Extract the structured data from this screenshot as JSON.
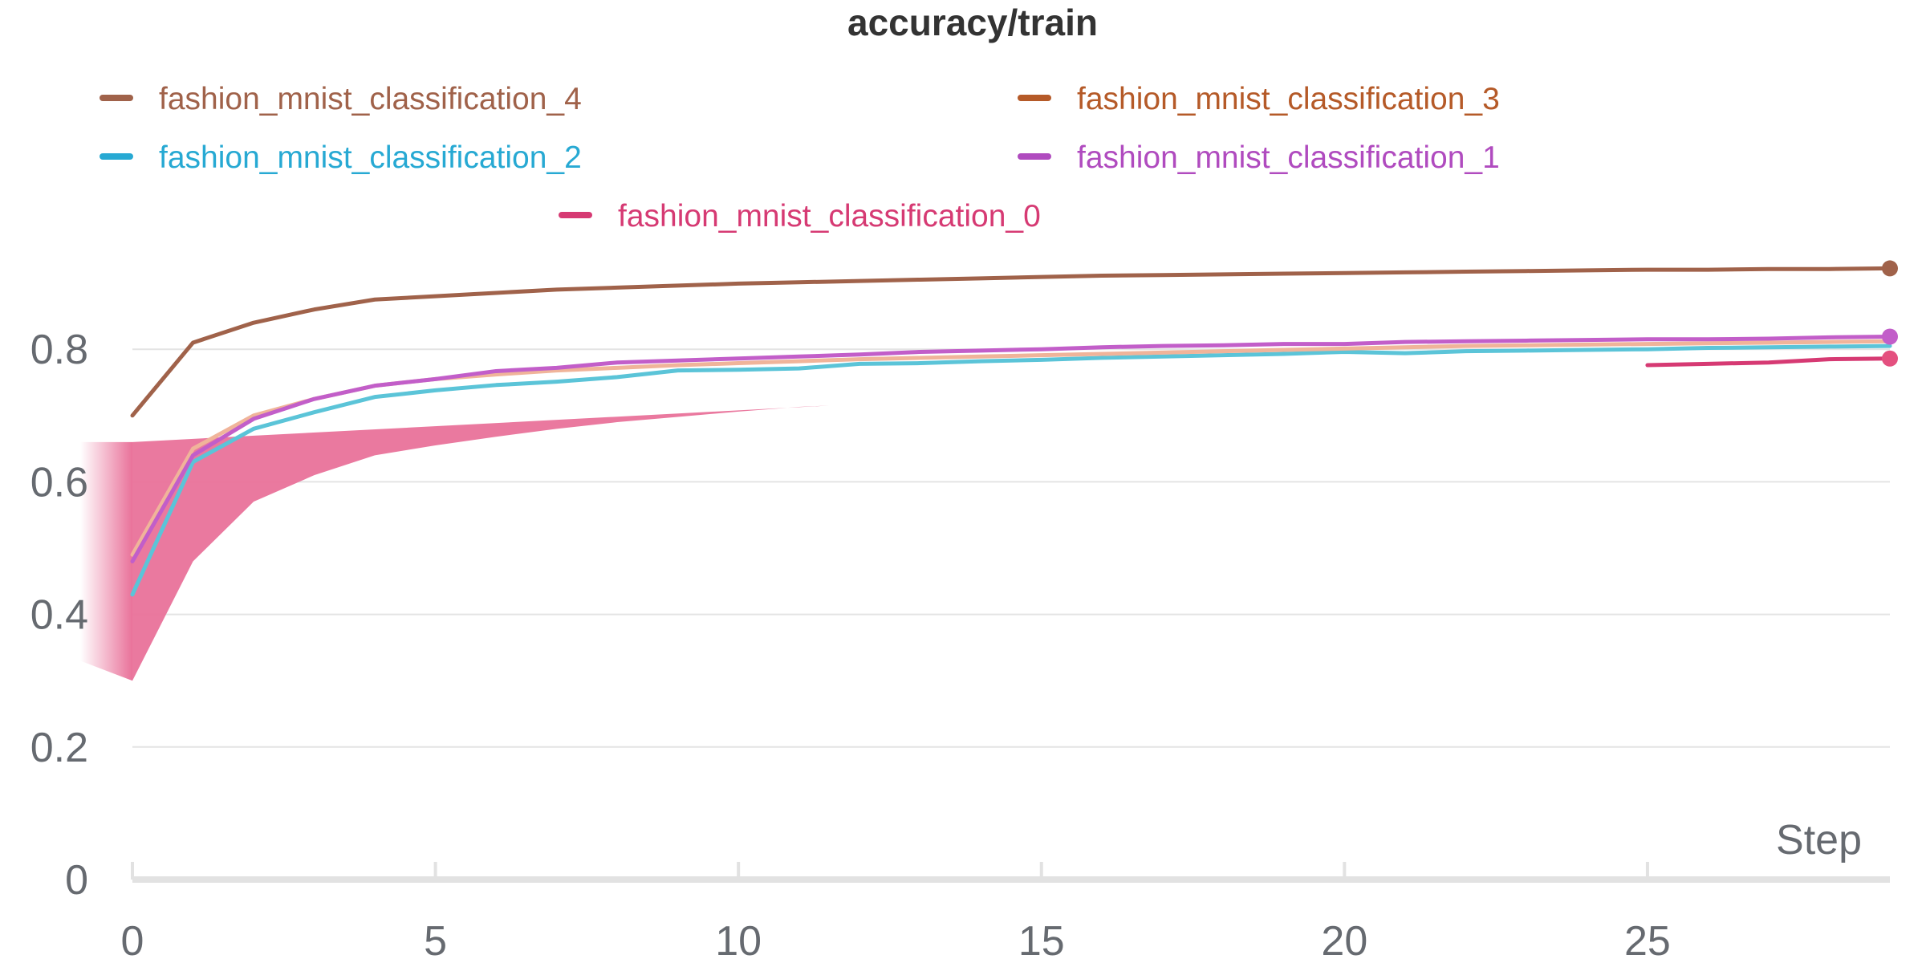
{
  "chart_data": {
    "type": "line",
    "title": "accuracy/train",
    "xlabel": "Step",
    "ylabel": "",
    "xlim": [
      0,
      29
    ],
    "ylim": [
      0,
      1.0
    ],
    "x_ticks": [
      0,
      5,
      10,
      15,
      20,
      25
    ],
    "y_ticks": [
      0,
      0.2,
      0.4,
      0.6,
      0.8
    ],
    "grid": true,
    "legend_position": "top",
    "legend": [
      {
        "name": "fashion_mnist_classification_4",
        "color": "#a0624a"
      },
      {
        "name": "fashion_mnist_classification_3",
        "color": "#b55a28"
      },
      {
        "name": "fashion_mnist_classification_2",
        "color": "#27a9d3"
      },
      {
        "name": "fashion_mnist_classification_1",
        "color": "#b04bbf"
      },
      {
        "name": "fashion_mnist_classification_0",
        "color": "#d63a73"
      }
    ],
    "series": [
      {
        "name": "fashion_mnist_classification_4",
        "color": "#a0624a",
        "x": [
          0,
          1,
          2,
          3,
          4,
          5,
          6,
          7,
          8,
          9,
          10,
          11,
          12,
          13,
          14,
          15,
          16,
          17,
          18,
          19,
          20,
          21,
          22,
          23,
          24,
          25,
          26,
          27,
          28,
          29
        ],
        "values": [
          0.7,
          0.81,
          0.84,
          0.86,
          0.875,
          0.88,
          0.885,
          0.89,
          0.893,
          0.896,
          0.899,
          0.901,
          0.903,
          0.905,
          0.907,
          0.909,
          0.911,
          0.912,
          0.913,
          0.914,
          0.915,
          0.916,
          0.917,
          0.918,
          0.919,
          0.92,
          0.92,
          0.921,
          0.921,
          0.922
        ]
      },
      {
        "name": "fashion_mnist_classification_3",
        "color": "#f0b49a",
        "x": [
          0,
          1,
          2,
          3,
          4,
          5,
          6,
          7,
          8,
          9,
          10,
          11,
          12,
          13,
          14,
          15,
          16,
          17,
          18,
          19,
          20,
          21,
          22,
          23,
          24,
          25,
          26,
          27,
          28,
          29
        ],
        "values": [
          0.49,
          0.65,
          0.7,
          0.725,
          0.745,
          0.755,
          0.762,
          0.768,
          0.772,
          0.776,
          0.779,
          0.782,
          0.785,
          0.787,
          0.789,
          0.791,
          0.793,
          0.795,
          0.797,
          0.799,
          0.801,
          0.803,
          0.805,
          0.806,
          0.807,
          0.808,
          0.809,
          0.81,
          0.811,
          0.812
        ]
      },
      {
        "name": "fashion_mnist_classification_2",
        "color": "#5bc4d8",
        "x": [
          0,
          1,
          2,
          3,
          4,
          5,
          6,
          7,
          8,
          9,
          10,
          11,
          12,
          13,
          14,
          15,
          16,
          17,
          18,
          19,
          20,
          21,
          22,
          23,
          24,
          25,
          26,
          27,
          28,
          29
        ],
        "values": [
          0.43,
          0.63,
          0.68,
          0.705,
          0.728,
          0.738,
          0.746,
          0.751,
          0.758,
          0.768,
          0.769,
          0.771,
          0.778,
          0.779,
          0.782,
          0.784,
          0.787,
          0.789,
          0.791,
          0.793,
          0.796,
          0.794,
          0.797,
          0.798,
          0.799,
          0.8,
          0.802,
          0.803,
          0.804,
          0.805
        ]
      },
      {
        "name": "fashion_mnist_classification_1",
        "color": "#c25ec9",
        "x": [
          0,
          1,
          2,
          3,
          4,
          5,
          6,
          7,
          8,
          9,
          10,
          11,
          12,
          13,
          14,
          15,
          16,
          17,
          18,
          19,
          20,
          21,
          22,
          23,
          24,
          25,
          26,
          27,
          28,
          29
        ],
        "values": [
          0.48,
          0.64,
          0.695,
          0.725,
          0.745,
          0.755,
          0.767,
          0.772,
          0.78,
          0.783,
          0.786,
          0.789,
          0.792,
          0.796,
          0.798,
          0.8,
          0.803,
          0.805,
          0.806,
          0.808,
          0.808,
          0.811,
          0.812,
          0.813,
          0.814,
          0.815,
          0.815,
          0.816,
          0.818,
          0.819
        ]
      },
      {
        "name": "fashion_mnist_classification_0",
        "color": "#d63a73",
        "x": [
          0,
          1,
          2,
          3,
          4,
          5,
          6,
          7,
          8,
          9,
          10,
          11,
          12,
          13,
          14,
          15,
          16,
          17,
          18,
          19,
          20,
          21,
          22,
          23,
          24,
          25,
          26,
          27,
          28,
          29
        ],
        "values": [
          0.3,
          0.48,
          0.57,
          0.61,
          0.64,
          0.655,
          0.668,
          0.68,
          0.69,
          0.698,
          0.706,
          0.713,
          0.72,
          0.727,
          0.733,
          0.738,
          0.743,
          0.748,
          0.752,
          0.756,
          0.76,
          0.764,
          0.767,
          0.77,
          0.773,
          0.776,
          0.778,
          0.78,
          0.785,
          0.786
        ]
      }
    ]
  }
}
